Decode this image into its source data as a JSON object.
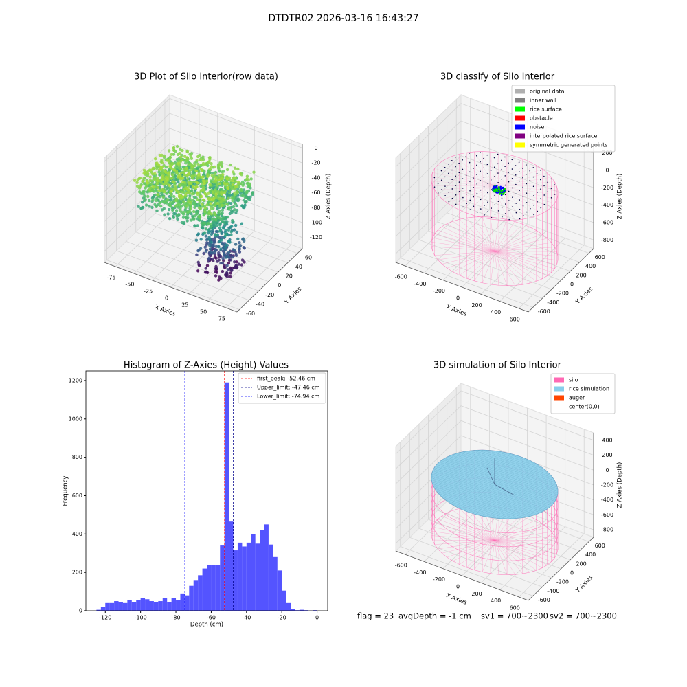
{
  "title": "DTDTR02 2026-03-16 16:43:27",
  "footer": [
    "flag = 23",
    "avgDepth = -1 cm",
    "sv1 = 700~2300",
    "sv2 = 700~2300"
  ],
  "chart_data": [
    {
      "type": "scatter3d",
      "title": "3D Plot of Silo Interior(row data)",
      "xlabel": "X Axies",
      "ylabel": "Y Axies",
      "zlabel": "Z Axies (Depth)",
      "xlim": [
        -90,
        90
      ],
      "ylim": [
        -65,
        70
      ],
      "zlim": [
        -135,
        5
      ],
      "xticks": [
        -75,
        -50,
        -25,
        0,
        25,
        50,
        75
      ],
      "yticks": [
        -60,
        -40,
        -20,
        0,
        20,
        40,
        60
      ],
      "zticks": [
        0,
        -20,
        -40,
        -60,
        -80,
        -100,
        -120
      ]
    },
    {
      "type": "classify3d",
      "title": "3D classify of Silo Interior",
      "xlabel": "X Axies",
      "ylabel": "Y Axies",
      "zlabel": "Z Axies (Depth)",
      "xlim": [
        -700,
        700
      ],
      "ylim": [
        -700,
        700
      ],
      "zlim": [
        -900,
        300
      ],
      "xticks": [
        -600,
        -400,
        -200,
        0,
        200,
        400,
        600
      ],
      "yticks": [
        -600,
        -400,
        -200,
        0,
        200,
        400,
        600
      ],
      "zticks": [
        200,
        0,
        -200,
        -400,
        -600,
        -800
      ],
      "legend": [
        {
          "name": "original data",
          "color": "#b0b0b0"
        },
        {
          "name": "inner wall",
          "color": "#808080"
        },
        {
          "name": "rice surface",
          "color": "#00ff00"
        },
        {
          "name": "obstacle",
          "color": "#ff0000"
        },
        {
          "name": "noise",
          "color": "#0000ff"
        },
        {
          "name": "interpolated rice surface",
          "color": "#800080"
        },
        {
          "name": "symmetric generated points",
          "color": "#ffff00"
        }
      ]
    },
    {
      "type": "histogram",
      "title": "Histogram of Z-Axies (Height) Values",
      "xlabel": "Depth (cm)",
      "ylabel": "Frequency",
      "color": "#4b4bff",
      "bins": [
        -125,
        -122.5,
        -120,
        -117.5,
        -115,
        -112.5,
        -110,
        -107.5,
        -105,
        -102.5,
        -100,
        -97.5,
        -95,
        -92.5,
        -90,
        -87.5,
        -85,
        -82.5,
        -80,
        -77.5,
        -75,
        -72.5,
        -70,
        -67.5,
        -65,
        -62.5,
        -60,
        -57.5,
        -55,
        -52.5,
        -50,
        -47.5,
        -45,
        -42.5,
        -40,
        -37.5,
        -35,
        -32.5,
        -30,
        -27.5,
        -25,
        -22.5,
        -20,
        -17.5,
        -15,
        -12.5,
        -10,
        -7.5,
        -5,
        -2.5,
        0
      ],
      "values": [
        5,
        20,
        40,
        40,
        50,
        45,
        40,
        55,
        45,
        55,
        65,
        60,
        50,
        45,
        50,
        65,
        45,
        65,
        55,
        90,
        80,
        130,
        160,
        185,
        220,
        240,
        240,
        240,
        340,
        1190,
        465,
        315,
        355,
        335,
        355,
        400,
        350,
        420,
        450,
        345,
        280,
        210,
        105,
        40,
        10,
        3,
        5,
        3,
        1,
        3
      ],
      "xlim": [
        -131,
        6
      ],
      "ylim": [
        0,
        1250
      ],
      "xticks": [
        -120,
        -100,
        -80,
        -60,
        -40,
        -20,
        0
      ],
      "yticks": [
        0,
        200,
        400,
        600,
        800,
        1000,
        1200
      ],
      "vlines": [
        {
          "name": "first_peak: -52.46 cm",
          "value": -52.46,
          "color": "#ff0000"
        },
        {
          "name": "Upper_limit: -47.46 cm",
          "value": -47.46,
          "color": "#00008b"
        },
        {
          "name": "Lower_limit: -74.94 cm",
          "value": -74.94,
          "color": "#0000ff"
        }
      ]
    },
    {
      "type": "simulation3d",
      "title": "3D simulation of Silo Interior",
      "xlabel": "X Axies",
      "ylabel": "Y Axies",
      "zlabel": "Z Axies (Depth)",
      "xlim": [
        -700,
        700
      ],
      "ylim": [
        -700,
        700
      ],
      "zlim": [
        -900,
        500
      ],
      "xticks": [
        -600,
        -400,
        -200,
        0,
        200,
        400,
        600
      ],
      "yticks": [
        -600,
        -400,
        -200,
        0,
        200,
        400,
        600
      ],
      "zticks": [
        400,
        200,
        0,
        -200,
        -400,
        -600,
        -800
      ],
      "legend": [
        {
          "name": "silo",
          "color": "#ff69b4"
        },
        {
          "name": "rice simulation",
          "color": "#87ceeb"
        },
        {
          "name": "auger",
          "color": "#ff4500"
        },
        {
          "name": "center(0,0)",
          "color": "#ffffff"
        }
      ]
    }
  ]
}
